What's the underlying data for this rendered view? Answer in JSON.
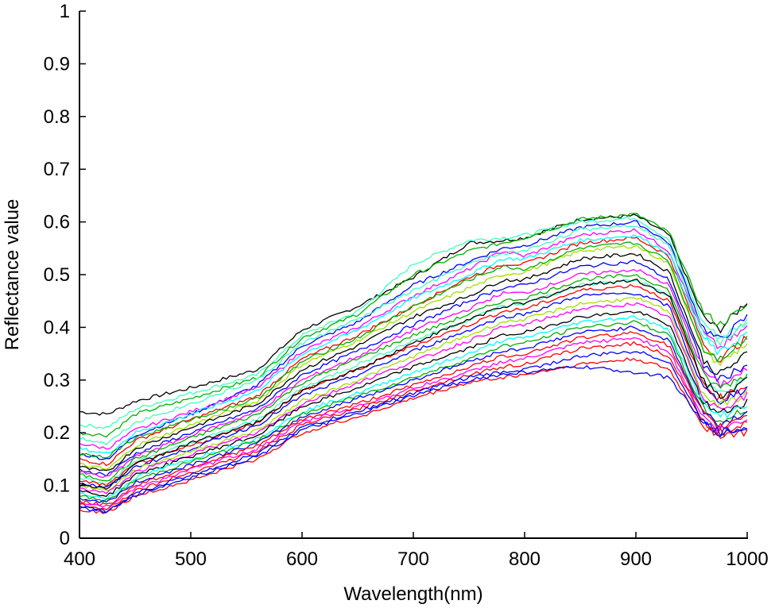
{
  "chart_data": {
    "type": "line",
    "title": "",
    "xlabel": "Wavelength(nm)",
    "ylabel": "Reflectance value",
    "xlim": [
      400,
      1000
    ],
    "ylim": [
      0,
      1
    ],
    "x_ticks": [
      400,
      500,
      600,
      700,
      800,
      900,
      1000
    ],
    "x_tick_labels": [
      "400",
      "500",
      "600",
      "700",
      "800",
      "900",
      "1000"
    ],
    "y_ticks": [
      0,
      0.1,
      0.2,
      0.3,
      0.4,
      0.5,
      0.6,
      0.7,
      0.8,
      0.9,
      1
    ],
    "y_tick_labels": [
      "0",
      "0.1",
      "0.2",
      "0.3",
      "0.4",
      "0.5",
      "0.6",
      "0.7",
      "0.8",
      "0.9",
      "1"
    ],
    "grid": false,
    "legend": "none",
    "x": [
      400,
      425,
      450,
      500,
      560,
      600,
      650,
      700,
      750,
      780,
      800,
      850,
      900,
      930,
      960,
      975,
      1000
    ],
    "series": [
      {
        "color": "#000000",
        "values": [
          0.24,
          0.235,
          0.26,
          0.285,
          0.32,
          0.395,
          0.44,
          0.495,
          0.56,
          0.565,
          0.57,
          0.605,
          0.612,
          0.575,
          0.42,
          0.395,
          0.45
        ]
      },
      {
        "color": "#40ffc0",
        "values": [
          0.215,
          0.21,
          0.245,
          0.275,
          0.31,
          0.385,
          0.43,
          0.52,
          0.565,
          0.57,
          0.575,
          0.6,
          0.608,
          0.565,
          0.41,
          0.38,
          0.41
        ]
      },
      {
        "color": "#00b000",
        "values": [
          0.2,
          0.195,
          0.235,
          0.265,
          0.305,
          0.38,
          0.425,
          0.5,
          0.545,
          0.56,
          0.57,
          0.605,
          0.615,
          0.58,
          0.43,
          0.405,
          0.44
        ]
      },
      {
        "color": "#0000ff",
        "values": [
          0.16,
          0.15,
          0.195,
          0.235,
          0.29,
          0.365,
          0.41,
          0.48,
          0.525,
          0.55,
          0.555,
          0.59,
          0.6,
          0.56,
          0.4,
          0.375,
          0.42
        ]
      },
      {
        "color": "#ff00ff",
        "values": [
          0.18,
          0.17,
          0.205,
          0.24,
          0.285,
          0.355,
          0.4,
          0.46,
          0.51,
          0.545,
          0.535,
          0.575,
          0.585,
          0.545,
          0.39,
          0.36,
          0.4
        ]
      },
      {
        "color": "#ff0000",
        "values": [
          0.15,
          0.14,
          0.185,
          0.225,
          0.27,
          0.34,
          0.385,
          0.44,
          0.495,
          0.52,
          0.52,
          0.56,
          0.57,
          0.535,
          0.37,
          0.34,
          0.38
        ]
      },
      {
        "color": "#00ffff",
        "values": [
          0.17,
          0.16,
          0.2,
          0.235,
          0.28,
          0.35,
          0.395,
          0.455,
          0.5,
          0.53,
          0.53,
          0.565,
          0.575,
          0.54,
          0.38,
          0.35,
          0.39
        ]
      },
      {
        "color": "#a0e000",
        "values": [
          0.14,
          0.13,
          0.175,
          0.215,
          0.26,
          0.33,
          0.375,
          0.43,
          0.475,
          0.5,
          0.505,
          0.545,
          0.555,
          0.52,
          0.36,
          0.33,
          0.37
        ]
      },
      {
        "color": "#000000",
        "values": [
          0.135,
          0.125,
          0.17,
          0.21,
          0.255,
          0.32,
          0.365,
          0.42,
          0.46,
          0.49,
          0.49,
          0.53,
          0.54,
          0.505,
          0.34,
          0.31,
          0.35
        ]
      },
      {
        "color": "#0000ff",
        "values": [
          0.13,
          0.12,
          0.16,
          0.2,
          0.245,
          0.31,
          0.355,
          0.405,
          0.45,
          0.475,
          0.48,
          0.515,
          0.525,
          0.49,
          0.33,
          0.3,
          0.33
        ]
      },
      {
        "color": "#ff00ff",
        "values": [
          0.125,
          0.115,
          0.155,
          0.195,
          0.24,
          0.3,
          0.345,
          0.395,
          0.435,
          0.465,
          0.465,
          0.5,
          0.51,
          0.48,
          0.32,
          0.29,
          0.32
        ]
      },
      {
        "color": "#00b000",
        "values": [
          0.12,
          0.11,
          0.15,
          0.19,
          0.235,
          0.295,
          0.34,
          0.385,
          0.425,
          0.45,
          0.455,
          0.49,
          0.5,
          0.47,
          0.31,
          0.285,
          0.31
        ]
      },
      {
        "color": "#40ffc0",
        "values": [
          0.115,
          0.105,
          0.145,
          0.18,
          0.225,
          0.285,
          0.33,
          0.375,
          0.415,
          0.44,
          0.445,
          0.48,
          0.49,
          0.46,
          0.3,
          0.275,
          0.3
        ]
      },
      {
        "color": "#ff0000",
        "values": [
          0.11,
          0.1,
          0.14,
          0.175,
          0.22,
          0.28,
          0.32,
          0.365,
          0.405,
          0.43,
          0.435,
          0.47,
          0.48,
          0.45,
          0.295,
          0.265,
          0.29
        ]
      },
      {
        "color": "#0000ff",
        "values": [
          0.105,
          0.095,
          0.135,
          0.17,
          0.215,
          0.27,
          0.31,
          0.355,
          0.395,
          0.42,
          0.425,
          0.46,
          0.465,
          0.44,
          0.285,
          0.26,
          0.285
        ]
      },
      {
        "color": "#a0e000",
        "values": [
          0.1,
          0.09,
          0.13,
          0.165,
          0.205,
          0.26,
          0.3,
          0.345,
          0.385,
          0.41,
          0.415,
          0.445,
          0.455,
          0.43,
          0.275,
          0.25,
          0.275
        ]
      },
      {
        "color": "#ff00ff",
        "values": [
          0.095,
          0.085,
          0.125,
          0.16,
          0.2,
          0.255,
          0.295,
          0.335,
          0.375,
          0.4,
          0.405,
          0.435,
          0.445,
          0.42,
          0.27,
          0.245,
          0.27
        ]
      },
      {
        "color": "#000000",
        "values": [
          0.09,
          0.08,
          0.12,
          0.155,
          0.195,
          0.25,
          0.285,
          0.325,
          0.36,
          0.385,
          0.39,
          0.42,
          0.43,
          0.405,
          0.26,
          0.235,
          0.26
        ]
      },
      {
        "color": "#00ffff",
        "values": [
          0.085,
          0.075,
          0.115,
          0.15,
          0.19,
          0.24,
          0.275,
          0.315,
          0.35,
          0.375,
          0.38,
          0.41,
          0.42,
          0.395,
          0.255,
          0.23,
          0.255
        ]
      },
      {
        "color": "#00b000",
        "values": [
          0.08,
          0.07,
          0.11,
          0.145,
          0.185,
          0.235,
          0.27,
          0.305,
          0.34,
          0.365,
          0.37,
          0.4,
          0.41,
          0.385,
          0.245,
          0.22,
          0.245
        ]
      },
      {
        "color": "#0000ff",
        "values": [
          0.075,
          0.068,
          0.105,
          0.14,
          0.18,
          0.23,
          0.265,
          0.3,
          0.335,
          0.355,
          0.36,
          0.39,
          0.4,
          0.375,
          0.24,
          0.215,
          0.24
        ]
      },
      {
        "color": "#ff0000",
        "values": [
          0.07,
          0.062,
          0.1,
          0.135,
          0.175,
          0.225,
          0.255,
          0.29,
          0.325,
          0.345,
          0.35,
          0.38,
          0.39,
          0.365,
          0.235,
          0.21,
          0.235
        ]
      },
      {
        "color": "#ff00ff",
        "values": [
          0.068,
          0.06,
          0.095,
          0.13,
          0.17,
          0.22,
          0.25,
          0.285,
          0.315,
          0.335,
          0.34,
          0.37,
          0.38,
          0.355,
          0.23,
          0.205,
          0.225
        ]
      },
      {
        "color": "#ff0000",
        "values": [
          0.065,
          0.055,
          0.09,
          0.125,
          0.165,
          0.215,
          0.245,
          0.28,
          0.31,
          0.325,
          0.33,
          0.36,
          0.37,
          0.345,
          0.225,
          0.2,
          0.215
        ]
      },
      {
        "color": "#0000ff",
        "values": [
          0.06,
          0.05,
          0.085,
          0.12,
          0.16,
          0.21,
          0.24,
          0.275,
          0.305,
          0.315,
          0.32,
          0.345,
          0.355,
          0.335,
          0.22,
          0.2,
          0.21
        ]
      },
      {
        "color": "#ff0000",
        "values": [
          0.055,
          0.048,
          0.08,
          0.11,
          0.15,
          0.2,
          0.23,
          0.265,
          0.295,
          0.305,
          0.31,
          0.33,
          0.34,
          0.32,
          0.215,
          0.195,
          0.2
        ]
      },
      {
        "color": "#0000ff",
        "values": [
          0.058,
          0.05,
          0.082,
          0.115,
          0.155,
          0.205,
          0.235,
          0.27,
          0.3,
          0.31,
          0.315,
          0.325,
          0.315,
          0.305,
          0.22,
          0.2,
          0.21
        ]
      },
      {
        "color": "#00b000",
        "values": [
          0.16,
          0.155,
          0.19,
          0.225,
          0.265,
          0.335,
          0.38,
          0.44,
          0.49,
          0.515,
          0.51,
          0.55,
          0.56,
          0.525,
          0.36,
          0.34,
          0.38
        ]
      },
      {
        "color": "#40ffc0",
        "values": [
          0.19,
          0.18,
          0.22,
          0.255,
          0.3,
          0.37,
          0.415,
          0.47,
          0.52,
          0.54,
          0.545,
          0.585,
          0.595,
          0.555,
          0.395,
          0.37,
          0.41
        ]
      },
      {
        "color": "#000000",
        "values": [
          0.1,
          0.095,
          0.14,
          0.18,
          0.22,
          0.28,
          0.32,
          0.37,
          0.415,
          0.44,
          0.445,
          0.48,
          0.49,
          0.46,
          0.3,
          0.27,
          0.3
        ]
      }
    ]
  }
}
